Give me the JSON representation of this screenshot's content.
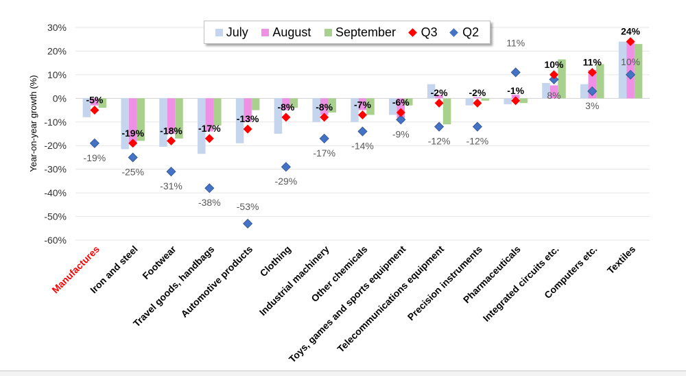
{
  "chart_data": {
    "type": "bar",
    "title": "",
    "xlabel": "",
    "ylabel": "Year-on-year growth (%)",
    "ylim": [
      -60,
      30
    ],
    "yticks": [
      30,
      20,
      10,
      0,
      -10,
      -20,
      -30,
      -40,
      -50,
      -60
    ],
    "ytick_labels": [
      "30%",
      "20%",
      "10%",
      "0%",
      "-10%",
      "-20%",
      "-30%",
      "-40%",
      "-50%",
      "-60%"
    ],
    "grid": true,
    "legend_position": "top-center",
    "categories": [
      "Manufactures",
      "Iron and steel",
      "Footwear",
      "Travel goods, handbags",
      "Automotive products",
      "Clothing",
      "Industrial machinery",
      "Other chemicals",
      "Toys, games and sports equipment",
      "Telecommunications equipment",
      "Precision instruments",
      "Pharmaceuticals",
      "Integrated circuits etc.",
      "Computers etc.",
      "Textiles"
    ],
    "highlight_category": "Manufactures",
    "series": [
      {
        "name": "July",
        "kind": "bar",
        "color": "#c5d5ee",
        "values": [
          -8,
          -21.5,
          -20.5,
          -23.5,
          -19,
          -15,
          -10,
          -10,
          -7,
          6,
          -3,
          -2.5,
          6.5,
          6,
          24
        ]
      },
      {
        "name": "August",
        "kind": "bar",
        "color": "#ee90e4",
        "values": [
          -3,
          -19.5,
          -15,
          -14,
          -10,
          -5,
          -7,
          -5,
          -8.5,
          1.5,
          0.5,
          1.5,
          5.5,
          12,
          24
        ]
      },
      {
        "name": "September",
        "kind": "bar",
        "color": "#a9d18e",
        "values": [
          -4,
          -18,
          -17,
          -11.5,
          -5,
          -4,
          -6,
          -7,
          -3,
          -11,
          -1,
          -2,
          16.5,
          14.5,
          23
        ]
      },
      {
        "name": "Q3",
        "kind": "marker",
        "color": "#ff0000",
        "values": [
          -5,
          -19,
          -18,
          -17,
          -13,
          -8,
          -8,
          -7,
          -6,
          -2,
          -2,
          -1,
          10,
          11,
          24
        ],
        "labels": [
          "-5%",
          "-19%",
          "-18%",
          "-17%",
          "-13%",
          "-8%",
          "-8%",
          "-7%",
          "-6%",
          "-2%",
          "-2%",
          "-1%",
          "10%",
          "11%",
          "24%"
        ]
      },
      {
        "name": "Q2",
        "kind": "marker",
        "color": "#4472c4",
        "values": [
          -19,
          -25,
          -31,
          -38,
          -53,
          -29,
          -17,
          -14,
          -9,
          -12,
          -12,
          11,
          8,
          3,
          10
        ],
        "labels": [
          "-19%",
          "-25%",
          "-31%",
          "-38%",
          "-53%",
          "-29%",
          "-17%",
          "-14%",
          "-9%",
          "-12%",
          "-12%",
          "11%",
          "8%",
          "3%",
          "10%"
        ]
      }
    ]
  },
  "legend": {
    "items": [
      {
        "label": "July",
        "color": "#c5d5ee",
        "shape": "square"
      },
      {
        "label": "August",
        "color": "#ee90e4",
        "shape": "square"
      },
      {
        "label": "September",
        "color": "#a9d18e",
        "shape": "square"
      },
      {
        "label": "Q3",
        "color": "#ff0000",
        "shape": "diamond"
      },
      {
        "label": "Q2",
        "color": "#4472c4",
        "shape": "diamond"
      }
    ]
  },
  "colors": {
    "highlight_label": "#ff0000",
    "grid": "#e6e6e6",
    "q2_label": "#595959"
  }
}
